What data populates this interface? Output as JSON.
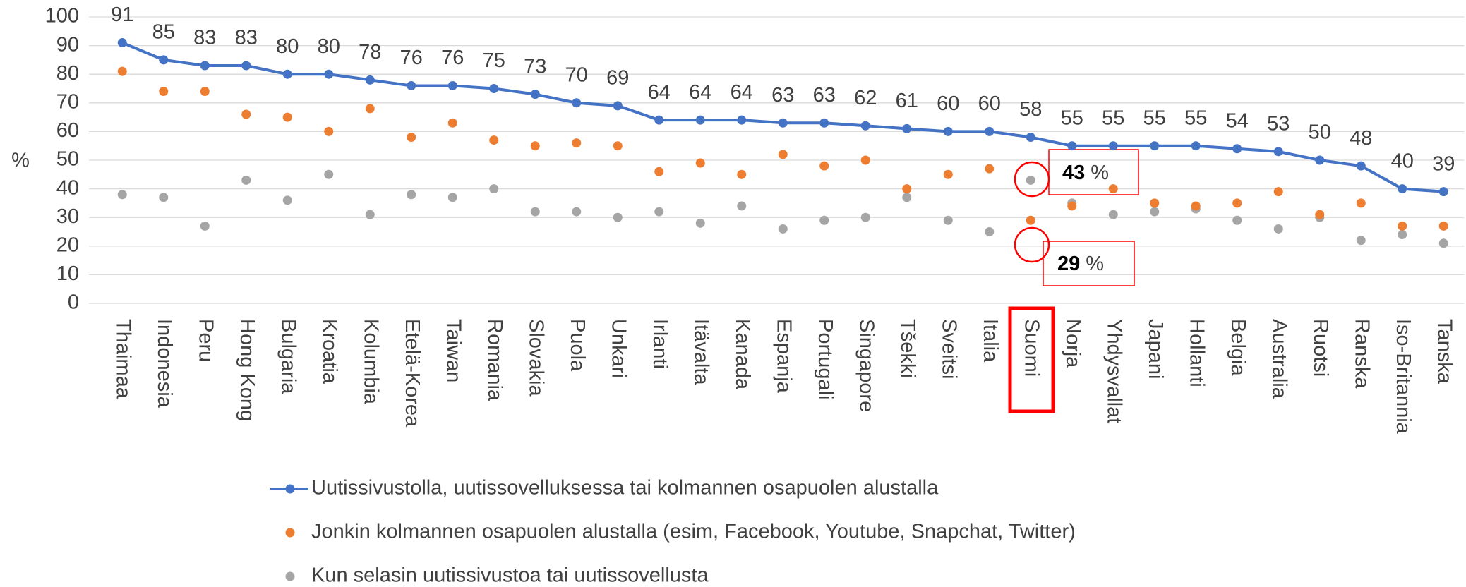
{
  "chart_data": {
    "type": "line",
    "y_label": "%",
    "categories": [
      "Thaimaa",
      "Indonesia",
      "Peru",
      "Hong Kong",
      "Bulgaria",
      "Kroatia",
      "Kolumbia",
      "Etelä-Korea",
      "Taiwan",
      "Romania",
      "Slovakia",
      "Puola",
      "Unkari",
      "Irlanti",
      "Itävalta",
      "Kanada",
      "Espanja",
      "Portugali",
      "Singapore",
      "Tšekki",
      "Sveitsi",
      "Italia",
      "Suomi",
      "Norja",
      "Yhdysvallat",
      "Japani",
      "Hollanti",
      "Belgia",
      "Australia",
      "Ruotsi",
      "Ranska",
      "Iso-Britannia",
      "Tanska"
    ],
    "series": [
      {
        "name": "Uutissivustolla, uutissovelluksessa tai kolmannen osapuolen alustalla",
        "color": "#4472c4",
        "style": "line",
        "labels": true,
        "values": [
          91,
          85,
          83,
          83,
          80,
          80,
          78,
          76,
          76,
          75,
          73,
          70,
          69,
          64,
          64,
          64,
          63,
          63,
          62,
          61,
          60,
          60,
          58,
          55,
          55,
          55,
          55,
          54,
          53,
          50,
          48,
          40,
          39
        ]
      },
      {
        "name": "Jonkin kolmannen osapuolen alustalla (esim, Facebook, Youtube, Snapchat, Twitter)",
        "color": "#ed7d31",
        "style": "markers",
        "values": [
          81,
          74,
          74,
          66,
          65,
          60,
          68,
          58,
          63,
          57,
          55,
          56,
          55,
          46,
          49,
          45,
          52,
          48,
          50,
          40,
          45,
          47,
          29,
          34,
          40,
          35,
          34,
          35,
          39,
          31,
          35,
          27,
          27
        ]
      },
      {
        "name": "Kun selasin uutissivustoa tai uutissovellusta",
        "color": "#a5a5a5",
        "style": "markers",
        "values": [
          38,
          37,
          27,
          43,
          36,
          45,
          31,
          38,
          37,
          40,
          32,
          32,
          30,
          32,
          28,
          34,
          26,
          29,
          30,
          37,
          29,
          25,
          43,
          35,
          31,
          32,
          33,
          29,
          26,
          30,
          22,
          24,
          21
        ]
      }
    ],
    "ylim": [
      0,
      100
    ],
    "yticks": [
      0,
      10,
      20,
      30,
      40,
      50,
      60,
      70,
      80,
      90,
      100
    ],
    "grid": true,
    "annotations": [
      {
        "number": "43",
        "unit": "%"
      },
      {
        "number": "29",
        "unit": "%"
      }
    ]
  }
}
